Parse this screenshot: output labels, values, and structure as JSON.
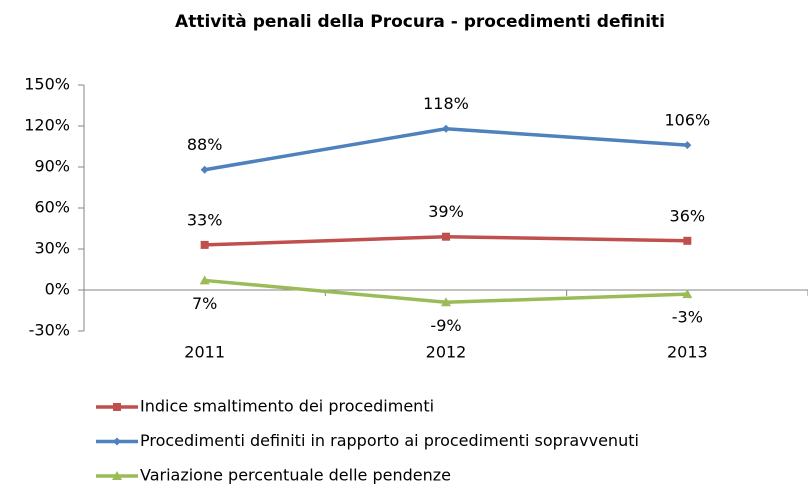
{
  "chart_data": {
    "type": "line",
    "title": "Attività penali della Procura - procedimenti definiti",
    "categories": [
      "2011",
      "2012",
      "2013"
    ],
    "series": [
      {
        "name": "Indice smaltimento dei procedimenti",
        "color": "#c0504d",
        "marker": "square",
        "values": [
          33,
          39,
          36
        ],
        "value_labels": [
          "33%",
          "39%",
          "36%"
        ]
      },
      {
        "name": "Procedimenti definiti in rapporto ai procedimenti sopravvenuti",
        "color": "#4f81bd",
        "marker": "diamond",
        "values": [
          88,
          118,
          106
        ],
        "value_labels": [
          "88%",
          "118%",
          "106%"
        ]
      },
      {
        "name": "Variazione percentuale delle pendenze",
        "color": "#9bbb59",
        "marker": "triangle",
        "values": [
          7,
          -9,
          -3
        ],
        "value_labels": [
          "7%",
          "-9%",
          "-3%"
        ]
      }
    ],
    "ylim": [
      -30,
      150
    ],
    "yticks": [
      {
        "value": -30,
        "label": "-30%"
      },
      {
        "value": 0,
        "label": "0%"
      },
      {
        "value": 30,
        "label": "30%"
      },
      {
        "value": 60,
        "label": "60%"
      },
      {
        "value": 90,
        "label": "90%"
      },
      {
        "value": 120,
        "label": "120%"
      },
      {
        "value": 150,
        "label": "150%"
      }
    ],
    "grid": false,
    "legend": "bottom"
  }
}
